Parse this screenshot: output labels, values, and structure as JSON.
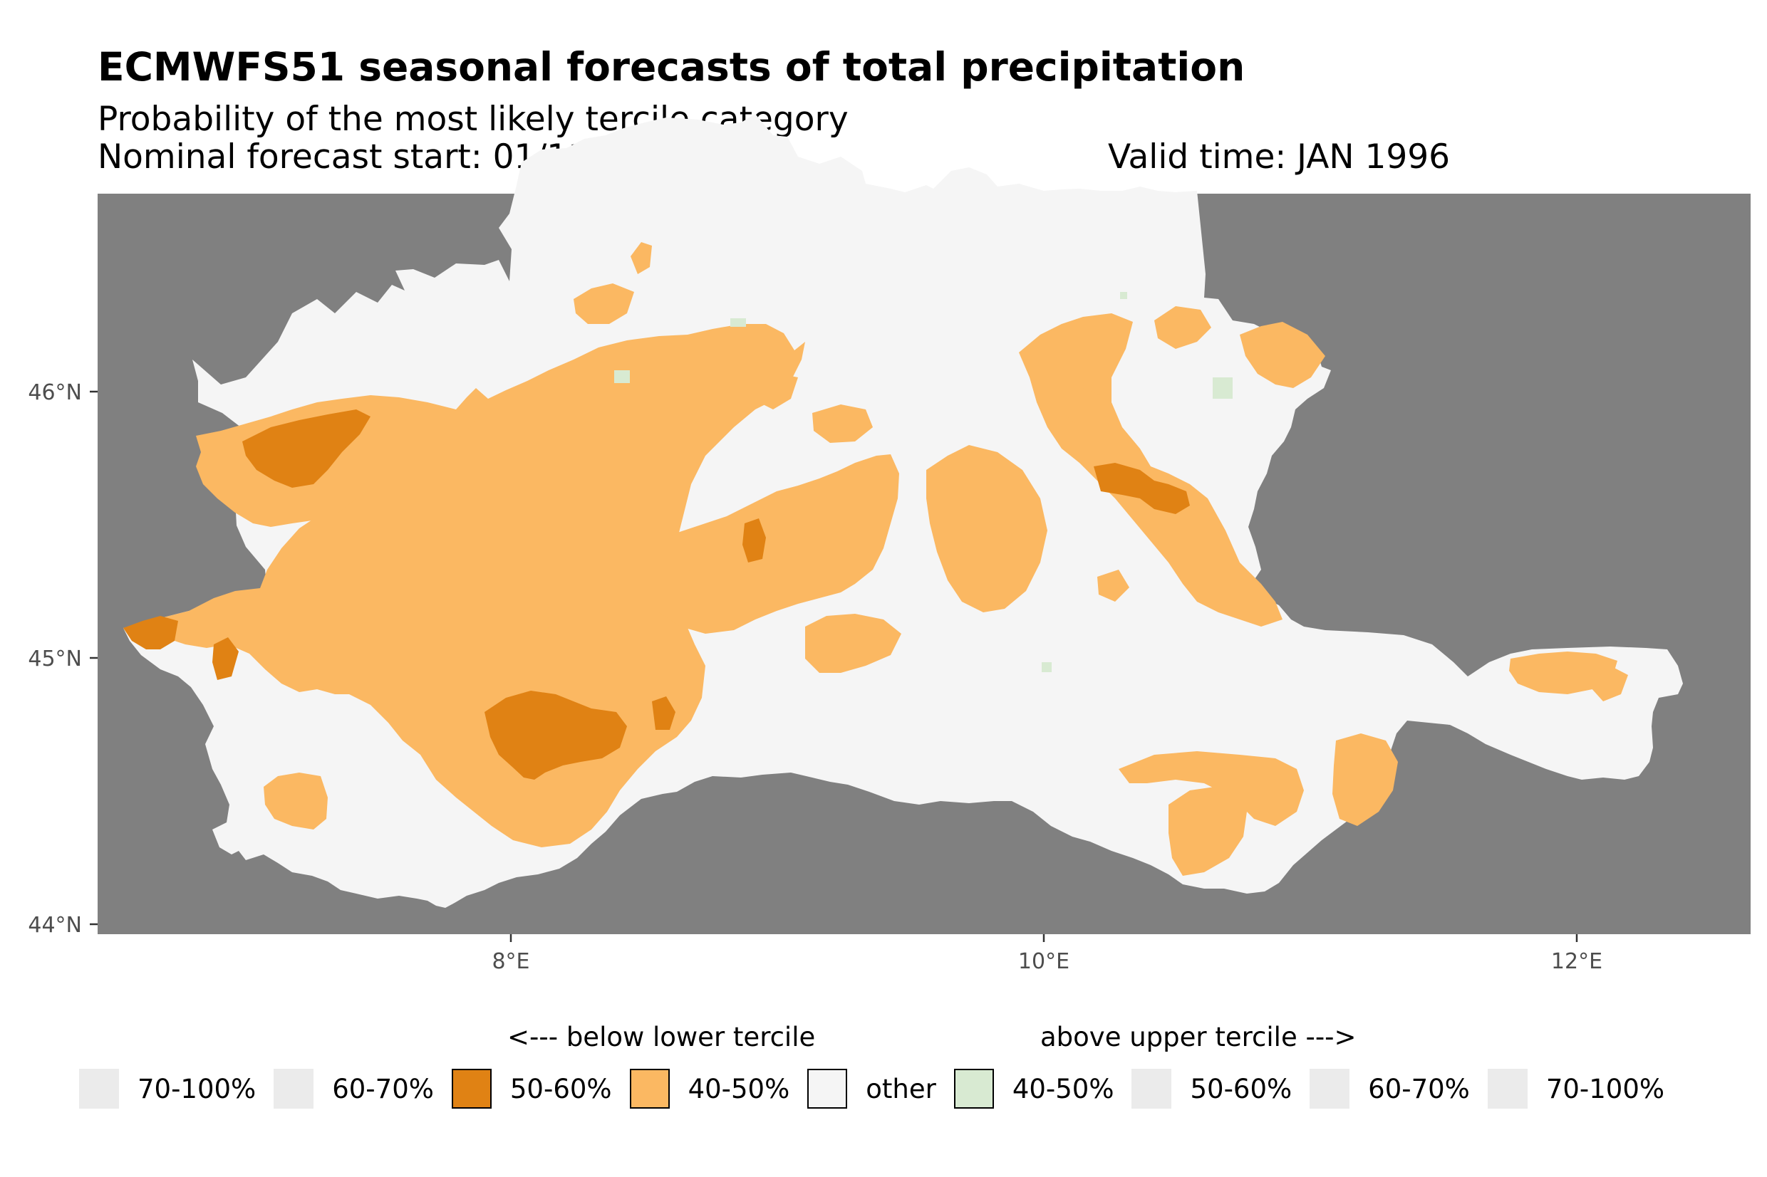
{
  "title": "ECMWFS51 seasonal forecasts of total precipitation",
  "subtitle": "Probability of the most likely tercile category",
  "forecast_start": "Nominal forecast start: 01/11/1995",
  "valid_time": "Valid time: JAN 1996",
  "axes": {
    "y_ticks": [
      "46°N",
      "45°N",
      "44°N"
    ],
    "x_ticks": [
      "8°E",
      "10°E",
      "12°E"
    ]
  },
  "colors": {
    "background": "#808080",
    "other": "#f5f5f5",
    "below_40_50": "#fbb862",
    "below_50_60": "#e08214",
    "above_40_50": "#d8ead2",
    "unused": "#ebebeb"
  },
  "legend": {
    "below_heading": "<--- below lower tercile",
    "above_heading": "above upper tercile --->",
    "items": [
      {
        "label": "70-100%",
        "color": "#ebebeb",
        "bordered": false
      },
      {
        "label": "60-70%",
        "color": "#ebebeb",
        "bordered": false
      },
      {
        "label": "50-60%",
        "color": "#e08214",
        "bordered": true
      },
      {
        "label": "40-50%",
        "color": "#fbb862",
        "bordered": true
      },
      {
        "label": "other",
        "color": "#f5f5f5",
        "bordered": true
      },
      {
        "label": "40-50%",
        "color": "#d8ead2",
        "bordered": true
      },
      {
        "label": "50-60%",
        "color": "#ebebeb",
        "bordered": false
      },
      {
        "label": "60-70%",
        "color": "#ebebeb",
        "bordered": false
      },
      {
        "label": "70-100%",
        "color": "#ebebeb",
        "bordered": false
      }
    ]
  }
}
